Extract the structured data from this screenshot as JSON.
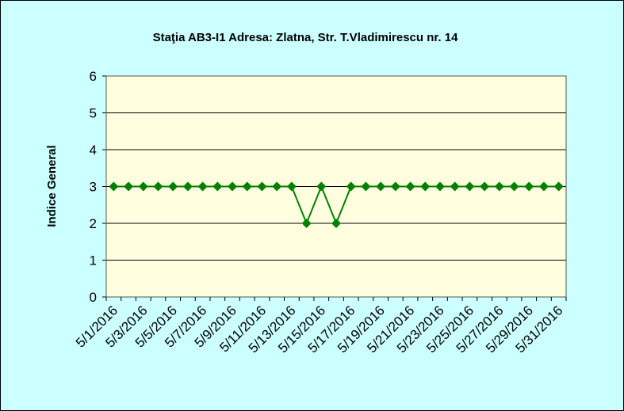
{
  "chart_data": {
    "type": "line",
    "title": "Staţia AB3-I1 Adresa: Zlatna,  Str. T.Vladimirescu  nr. 14",
    "y_label": "Indice General",
    "categories": [
      "5/1/2016",
      null,
      "5/3/2016",
      null,
      "5/5/2016",
      null,
      "5/7/2016",
      null,
      "5/9/2016",
      null,
      "5/11/2016",
      null,
      "5/13/2016",
      null,
      "5/15/2016",
      null,
      "5/17/2016",
      null,
      "5/19/2016",
      null,
      "5/21/2016",
      null,
      "5/23/2016",
      null,
      "5/25/2016",
      null,
      "5/27/2016",
      null,
      "5/29/2016",
      null,
      "5/31/2016"
    ],
    "series": [
      {
        "name": "Indice General",
        "color": "#008000",
        "values": [
          3,
          3,
          3,
          3,
          3,
          3,
          3,
          3,
          3,
          3,
          3,
          3,
          3,
          2,
          3,
          2,
          3,
          3,
          3,
          3,
          3,
          3,
          3,
          3,
          3,
          3,
          3,
          3,
          3,
          3,
          3
        ]
      }
    ],
    "ylim": [
      0,
      6
    ],
    "yticks": [
      0,
      1,
      2,
      3,
      4,
      5,
      6
    ],
    "grid": true
  }
}
